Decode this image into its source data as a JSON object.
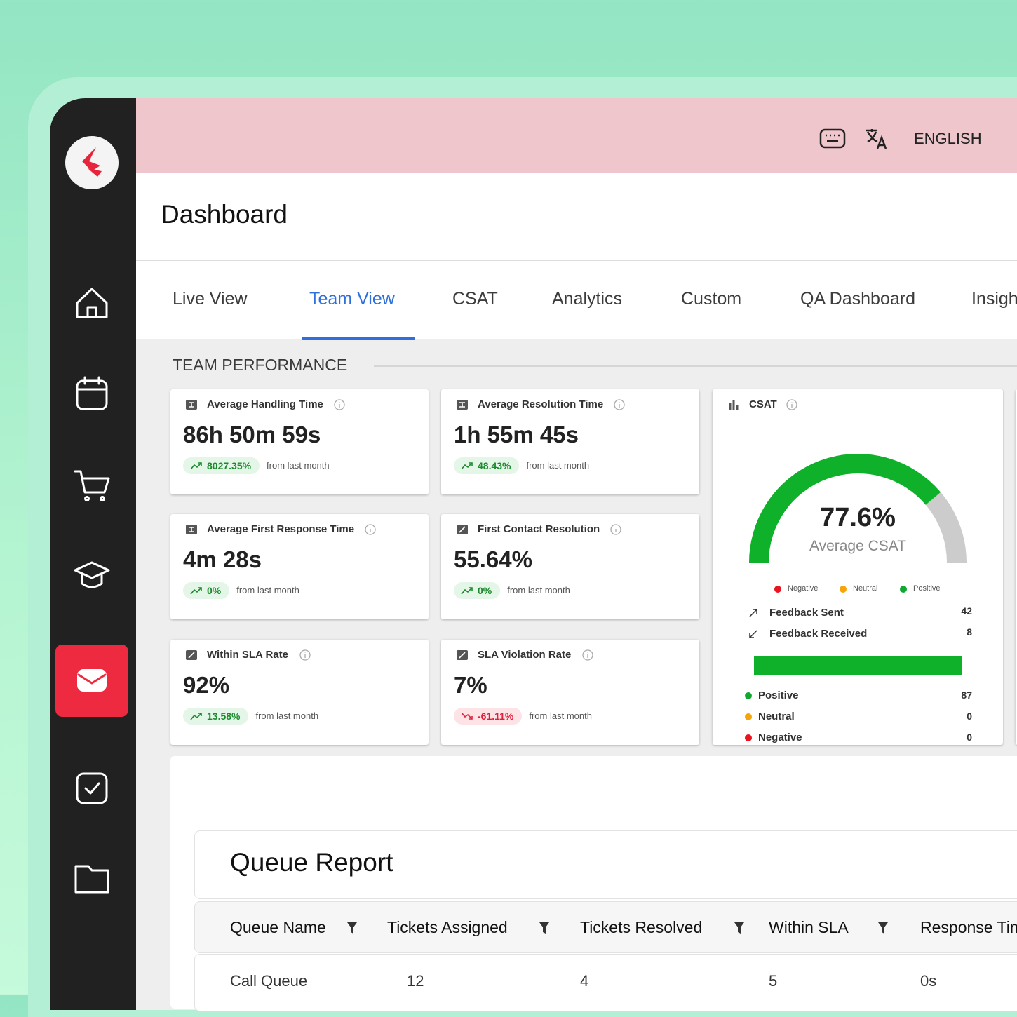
{
  "header": {
    "language": "ENGLISH"
  },
  "page_title": "Dashboard",
  "tabs": [
    "Live View",
    "Team View",
    "CSAT",
    "Analytics",
    "Custom",
    "QA Dashboard",
    "Insights"
  ],
  "section_title": "TEAM PERFORMANCE",
  "metrics": [
    {
      "title": "Average Handling Time",
      "value": "86h 50m 59s",
      "change": "8027.35%",
      "note": "from last month",
      "trend": "up",
      "icon": "timer"
    },
    {
      "title": "Average Resolution Time",
      "value": "1h 55m 45s",
      "change": "48.43%",
      "note": "from last month",
      "trend": "up",
      "icon": "timer"
    },
    {
      "title": "Average First Response Time",
      "value": "4m 28s",
      "change": "0%",
      "note": "from last month",
      "trend": "up",
      "icon": "timer"
    },
    {
      "title": "First Contact Resolution",
      "value": "55.64%",
      "change": "0%",
      "note": "from last month",
      "trend": "up",
      "icon": "percent"
    },
    {
      "title": "Within SLA Rate",
      "value": "92%",
      "change": "13.58%",
      "note": "from last month",
      "trend": "up",
      "icon": "percent"
    },
    {
      "title": "SLA Violation Rate",
      "value": "7%",
      "change": "-61.11%",
      "note": "from last month",
      "trend": "down",
      "icon": "percent"
    }
  ],
  "csat": {
    "title": "CSAT",
    "gauge": {
      "value": 77.6,
      "label": "77.6%"
    },
    "gauge_caption": "Average CSAT",
    "legend": [
      {
        "name": "Negative",
        "color": "#e8141e"
      },
      {
        "name": "Neutral",
        "color": "#f5a50a"
      },
      {
        "name": "Positive",
        "color": "#11a832"
      }
    ],
    "feedback": [
      {
        "label": "Feedback Sent",
        "value": "42"
      },
      {
        "label": "Feedback Received",
        "value": "8"
      }
    ],
    "breakdown": [
      {
        "label": "Positive",
        "value": "87",
        "color": "#11a832"
      },
      {
        "label": "Neutral",
        "value": "0",
        "color": "#f5a50a"
      },
      {
        "label": "Negative",
        "value": "0",
        "color": "#e8141e"
      }
    ]
  },
  "queue_report": {
    "title": "Queue Report",
    "columns": [
      "Queue Name",
      "Tickets Assigned",
      "Tickets Resolved",
      "Within SLA",
      "Response Time"
    ],
    "rows": [
      [
        "Call Queue",
        "12",
        "4",
        "5",
        "0s"
      ]
    ]
  }
}
